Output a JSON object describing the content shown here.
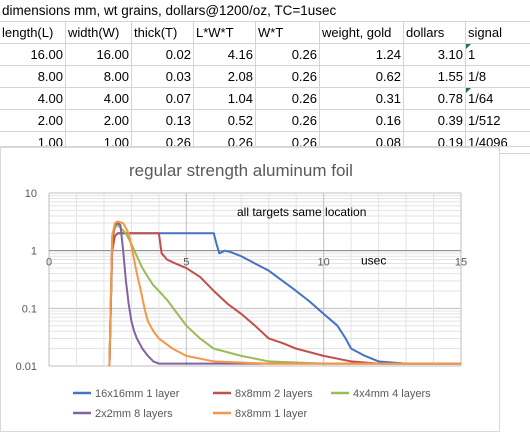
{
  "header": {
    "title": "dimensions mm, wt grains, dollars@1200/oz, TC=1usec"
  },
  "table": {
    "columns": [
      "length(L)",
      "width(W)",
      "thick(T)",
      "L*W*T",
      "W*T",
      "weight, gold",
      "dollars",
      "signal"
    ],
    "rows": [
      [
        "16.00",
        "16.00",
        "0.02",
        "4.16",
        "0.26",
        "1.24",
        "3.10",
        "1"
      ],
      [
        "8.00",
        "8.00",
        "0.03",
        "2.08",
        "0.26",
        "0.62",
        "1.55",
        "1/8"
      ],
      [
        "4.00",
        "4.00",
        "0.07",
        "1.04",
        "0.26",
        "0.31",
        "0.78",
        "1/64"
      ],
      [
        "2.00",
        "2.00",
        "0.13",
        "0.52",
        "0.26",
        "0.16",
        "0.39",
        "1/512"
      ],
      [
        "1.00",
        "1.00",
        "0.26",
        "0.26",
        "0.26",
        "0.08",
        "0.19",
        "1/4096"
      ]
    ]
  },
  "chart_data": {
    "type": "line",
    "title": "regular strength aluminum foil",
    "annotation": "all targets same location",
    "xlabel": "usec",
    "ylabel": "",
    "xlim": [
      0,
      15
    ],
    "ylim": [
      0.01,
      10
    ],
    "yscale": "log",
    "x_ticks": [
      "0",
      "5",
      "10",
      "15"
    ],
    "y_ticks": [
      "10",
      "1",
      "0.1",
      "0.01"
    ],
    "grid": true,
    "legend_position": "bottom",
    "series": [
      {
        "name": "16x16mm 1 layer",
        "color": "#4472c4",
        "x": [
          2.2,
          2.3,
          2.4,
          2.5,
          3.0,
          4.0,
          5.0,
          6.0,
          6.1,
          6.2,
          6.4,
          6.6,
          7.0,
          7.5,
          8.0,
          8.5,
          9.0,
          9.5,
          10.0,
          10.5,
          10.8,
          11.0,
          11.5,
          12.0,
          13.0,
          14.0,
          15.0
        ],
        "y": [
          0.01,
          1.2,
          1.8,
          2.0,
          2.0,
          2.0,
          2.0,
          2.0,
          1.3,
          0.9,
          1.0,
          0.95,
          0.8,
          0.6,
          0.45,
          0.3,
          0.2,
          0.13,
          0.08,
          0.05,
          0.03,
          0.02,
          0.015,
          0.012,
          0.011,
          0.011,
          0.011
        ]
      },
      {
        "name": "8x8mm 2 layers",
        "color": "#c0504d",
        "x": [
          2.2,
          2.3,
          2.4,
          2.5,
          3.0,
          3.5,
          4.0,
          4.1,
          4.3,
          4.6,
          5.0,
          5.5,
          6.0,
          6.5,
          7.0,
          7.5,
          8.0,
          8.5,
          9.0,
          10.0,
          11.0,
          12.0,
          13.0,
          14.0,
          15.0
        ],
        "y": [
          0.01,
          1.0,
          1.8,
          2.0,
          2.0,
          2.0,
          2.0,
          0.9,
          0.7,
          0.6,
          0.5,
          0.35,
          0.2,
          0.12,
          0.08,
          0.05,
          0.03,
          0.025,
          0.02,
          0.015,
          0.012,
          0.011,
          0.011,
          0.011,
          0.011
        ]
      },
      {
        "name": "4x4mm 4 layers",
        "color": "#9bbb59",
        "x": [
          2.2,
          2.3,
          2.4,
          2.5,
          2.8,
          3.0,
          3.2,
          3.4,
          3.6,
          3.8,
          4.0,
          4.3,
          4.6,
          5.0,
          5.5,
          6.0,
          7.0,
          8.0,
          10.0,
          15.0
        ],
        "y": [
          0.01,
          1.5,
          2.5,
          2.8,
          2.0,
          1.3,
          0.8,
          0.5,
          0.35,
          0.25,
          0.2,
          0.14,
          0.09,
          0.05,
          0.03,
          0.02,
          0.015,
          0.012,
          0.011,
          0.011
        ]
      },
      {
        "name": "2x2mm 8 layers",
        "color": "#8064a2",
        "x": [
          2.2,
          2.3,
          2.4,
          2.5,
          2.6,
          2.7,
          2.8,
          2.9,
          3.0,
          3.1,
          3.2,
          3.4,
          3.6,
          3.8,
          4.0,
          5.0,
          6.0,
          8.0,
          10.0,
          15.0
        ],
        "y": [
          0.01,
          1.5,
          2.8,
          3.0,
          2.8,
          1.0,
          0.3,
          0.12,
          0.06,
          0.04,
          0.03,
          0.02,
          0.015,
          0.012,
          0.011,
          0.011,
          0.011,
          0.011,
          0.011,
          0.011
        ]
      },
      {
        "name": "8x8mm 1 layer",
        "color": "#f79646",
        "x": [
          2.2,
          2.3,
          2.4,
          2.5,
          2.7,
          2.9,
          3.0,
          3.1,
          3.2,
          3.3,
          3.4,
          3.5,
          3.6,
          3.8,
          4.0,
          4.5,
          5.0,
          6.0,
          8.0,
          10.0,
          15.0
        ],
        "y": [
          0.01,
          1.8,
          3.0,
          3.2,
          3.0,
          2.0,
          1.2,
          0.7,
          0.4,
          0.25,
          0.15,
          0.09,
          0.06,
          0.04,
          0.03,
          0.02,
          0.015,
          0.012,
          0.011,
          0.011,
          0.011
        ]
      }
    ]
  }
}
